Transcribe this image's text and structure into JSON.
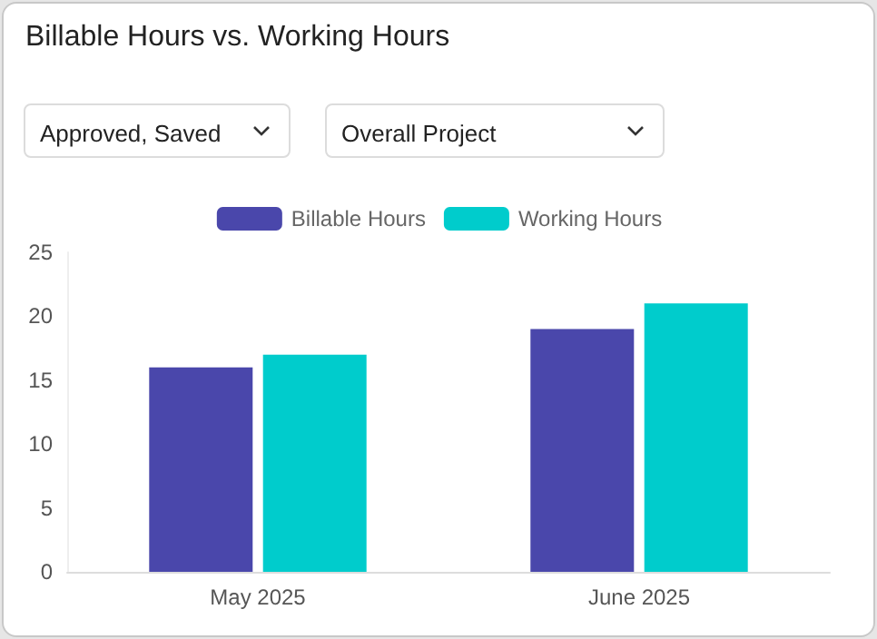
{
  "chart_data": {
    "type": "bar",
    "title": "Billable Hours vs. Working Hours",
    "annotations": [
      "Approved, Saved",
      "Overall Project"
    ],
    "categories": [
      "May 2025",
      "June 2025"
    ],
    "series": [
      {
        "name": "Billable Hours",
        "color": "#4a47ab",
        "values": [
          16,
          19
        ]
      },
      {
        "name": "Working Hours",
        "color": "#00cccc",
        "values": [
          17,
          21
        ]
      }
    ],
    "ylim": [
      0,
      25
    ],
    "yticks": [
      0,
      5,
      10,
      15,
      20,
      25
    ],
    "grid": false,
    "legend": "top"
  }
}
